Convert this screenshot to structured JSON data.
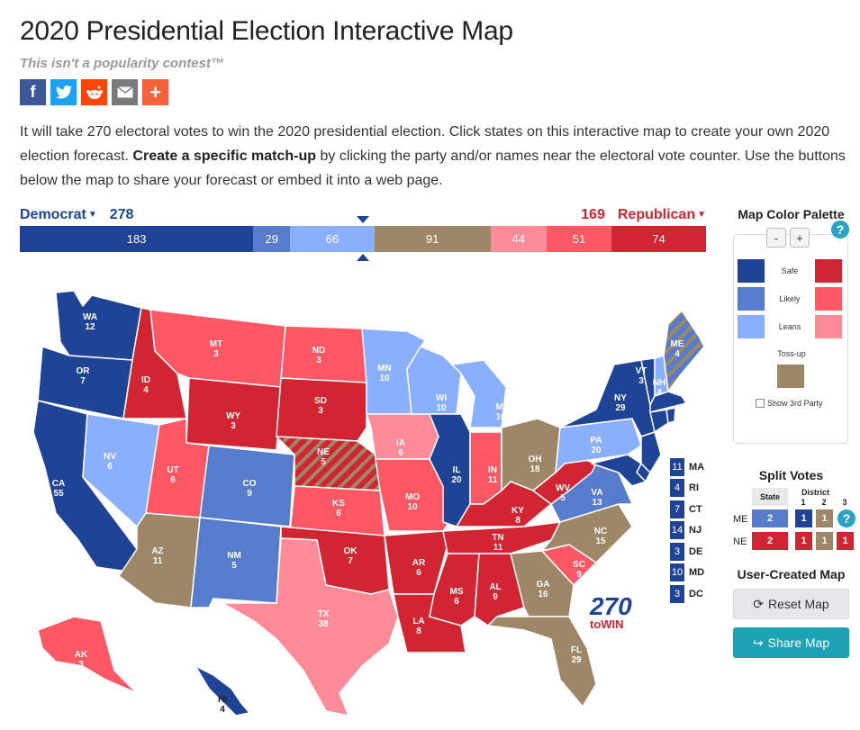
{
  "header": {
    "title": "2020 Presidential Election Interactive Map",
    "tagline": "This isn't a popularity contest™"
  },
  "share_icons": [
    {
      "name": "facebook-icon",
      "glyph": "f",
      "color": "#3b5998"
    },
    {
      "name": "twitter-icon",
      "glyph": "t",
      "color": "#1da1f2"
    },
    {
      "name": "reddit-icon",
      "glyph": "r",
      "color": "#ff4500"
    },
    {
      "name": "email-icon",
      "glyph": "✉",
      "color": "#7a7a7a"
    },
    {
      "name": "plus-icon",
      "glyph": "+",
      "color": "#f4623a"
    }
  ],
  "intro": {
    "part1": "It will take 270 electoral votes to win the 2020 presidential election. Click states on this interactive map to create your own 2020 election forecast. ",
    "bold": "Create a specific match-up",
    "part2": " by clicking the party and/or names near the electoral vote counter. Use the buttons below the map to share your forecast or embed it into a web page."
  },
  "counter": {
    "dem_label": "Democrat",
    "dem_total": "278",
    "rep_label": "Republican",
    "rep_total": "169",
    "segments": [
      {
        "value": 183,
        "color": "#1f4496"
      },
      {
        "value": 29,
        "color": "#577ccc"
      },
      {
        "value": 66,
        "color": "#8aafff"
      },
      {
        "value": 91,
        "color": "#9e8767"
      },
      {
        "value": 44,
        "color": "#ff8b98"
      },
      {
        "value": 51,
        "color": "#ff5865"
      },
      {
        "value": 74,
        "color": "#d22532"
      }
    ]
  },
  "colors": {
    "dem_safe": "#1f4496",
    "dem_likely": "#577ccc",
    "dem_leans": "#8aafff",
    "tossup": "#9e8767",
    "rep_leans": "#ff8b98",
    "rep_likely": "#ff5865",
    "rep_safe": "#d22532"
  },
  "states": [
    {
      "abbr": "WA",
      "ev": "12",
      "rating": "dem_safe"
    },
    {
      "abbr": "OR",
      "ev": "7",
      "rating": "dem_safe"
    },
    {
      "abbr": "CA",
      "ev": "55",
      "rating": "dem_safe"
    },
    {
      "abbr": "NV",
      "ev": "6",
      "rating": "dem_leans"
    },
    {
      "abbr": "ID",
      "ev": "4",
      "rating": "rep_safe"
    },
    {
      "abbr": "MT",
      "ev": "3",
      "rating": "rep_likely"
    },
    {
      "abbr": "WY",
      "ev": "3",
      "rating": "rep_safe"
    },
    {
      "abbr": "UT",
      "ev": "6",
      "rating": "rep_likely"
    },
    {
      "abbr": "AZ",
      "ev": "11",
      "rating": "tossup"
    },
    {
      "abbr": "CO",
      "ev": "9",
      "rating": "dem_likely"
    },
    {
      "abbr": "NM",
      "ev": "5",
      "rating": "dem_likely"
    },
    {
      "abbr": "ND",
      "ev": "3",
      "rating": "rep_likely"
    },
    {
      "abbr": "SD",
      "ev": "3",
      "rating": "rep_safe"
    },
    {
      "abbr": "NE",
      "ev": "5",
      "rating": "rep_safe"
    },
    {
      "abbr": "KS",
      "ev": "6",
      "rating": "rep_likely"
    },
    {
      "abbr": "OK",
      "ev": "7",
      "rating": "rep_safe"
    },
    {
      "abbr": "TX",
      "ev": "38",
      "rating": "rep_leans"
    },
    {
      "abbr": "MN",
      "ev": "10",
      "rating": "dem_leans"
    },
    {
      "abbr": "IA",
      "ev": "6",
      "rating": "rep_leans"
    },
    {
      "abbr": "MO",
      "ev": "10",
      "rating": "rep_likely"
    },
    {
      "abbr": "AR",
      "ev": "6",
      "rating": "rep_safe"
    },
    {
      "abbr": "LA",
      "ev": "8",
      "rating": "rep_safe"
    },
    {
      "abbr": "WI",
      "ev": "10",
      "rating": "dem_leans"
    },
    {
      "abbr": "IL",
      "ev": "20",
      "rating": "dem_safe"
    },
    {
      "abbr": "MI",
      "ev": "16",
      "rating": "dem_leans"
    },
    {
      "abbr": "IN",
      "ev": "11",
      "rating": "rep_likely"
    },
    {
      "abbr": "OH",
      "ev": "18",
      "rating": "tossup"
    },
    {
      "abbr": "KY",
      "ev": "8",
      "rating": "rep_safe"
    },
    {
      "abbr": "TN",
      "ev": "11",
      "rating": "rep_safe"
    },
    {
      "abbr": "MS",
      "ev": "6",
      "rating": "rep_safe"
    },
    {
      "abbr": "AL",
      "ev": "9",
      "rating": "rep_safe"
    },
    {
      "abbr": "GA",
      "ev": "16",
      "rating": "tossup"
    },
    {
      "abbr": "FL",
      "ev": "29",
      "rating": "tossup"
    },
    {
      "abbr": "SC",
      "ev": "9",
      "rating": "rep_likely"
    },
    {
      "abbr": "NC",
      "ev": "15",
      "rating": "tossup"
    },
    {
      "abbr": "VA",
      "ev": "13",
      "rating": "dem_likely"
    },
    {
      "abbr": "WV",
      "ev": "5",
      "rating": "rep_safe"
    },
    {
      "abbr": "PA",
      "ev": "20",
      "rating": "dem_leans"
    },
    {
      "abbr": "NY",
      "ev": "29",
      "rating": "dem_safe"
    },
    {
      "abbr": "VT",
      "ev": "3",
      "rating": "dem_safe"
    },
    {
      "abbr": "NH",
      "ev": "4",
      "rating": "dem_leans"
    },
    {
      "abbr": "ME",
      "ev": "4",
      "rating": "dem_likely"
    },
    {
      "abbr": "AK",
      "ev": "3",
      "rating": "rep_likely"
    },
    {
      "abbr": "HI",
      "ev": "4",
      "rating": "dem_safe"
    }
  ],
  "small_states": [
    {
      "ev": "11",
      "abbr": "MA",
      "rating": "dem_safe"
    },
    {
      "ev": "4",
      "abbr": "RI",
      "rating": "dem_safe"
    },
    {
      "ev": "7",
      "abbr": "CT",
      "rating": "dem_safe"
    },
    {
      "ev": "14",
      "abbr": "NJ",
      "rating": "dem_safe"
    },
    {
      "ev": "3",
      "abbr": "DE",
      "rating": "dem_safe"
    },
    {
      "ev": "10",
      "abbr": "MD",
      "rating": "dem_safe"
    },
    {
      "ev": "3",
      "abbr": "DC",
      "rating": "dem_safe"
    }
  ],
  "logo": {
    "top": "270",
    "bottom": "toWIN"
  },
  "sidebar": {
    "palette_title": "Map Color Palette",
    "minus": "-",
    "plus": "+",
    "help": "?",
    "safe": "Safe",
    "likely": "Likely",
    "leans": "Leans",
    "tossup": "Toss-up",
    "third_party": "Show 3rd Party",
    "split_title": "Split Votes",
    "state_header": "State",
    "district_header": "District",
    "district_nums": [
      "1",
      "2",
      "3"
    ],
    "me_label": "ME",
    "ne_label": "NE",
    "me_votes": [
      "2",
      "1",
      "1"
    ],
    "ne_votes": [
      "2",
      "1",
      "1",
      "1"
    ],
    "ucm_title": "User-Created Map",
    "reset_label": "Reset Map",
    "share_label": "Share Map"
  }
}
